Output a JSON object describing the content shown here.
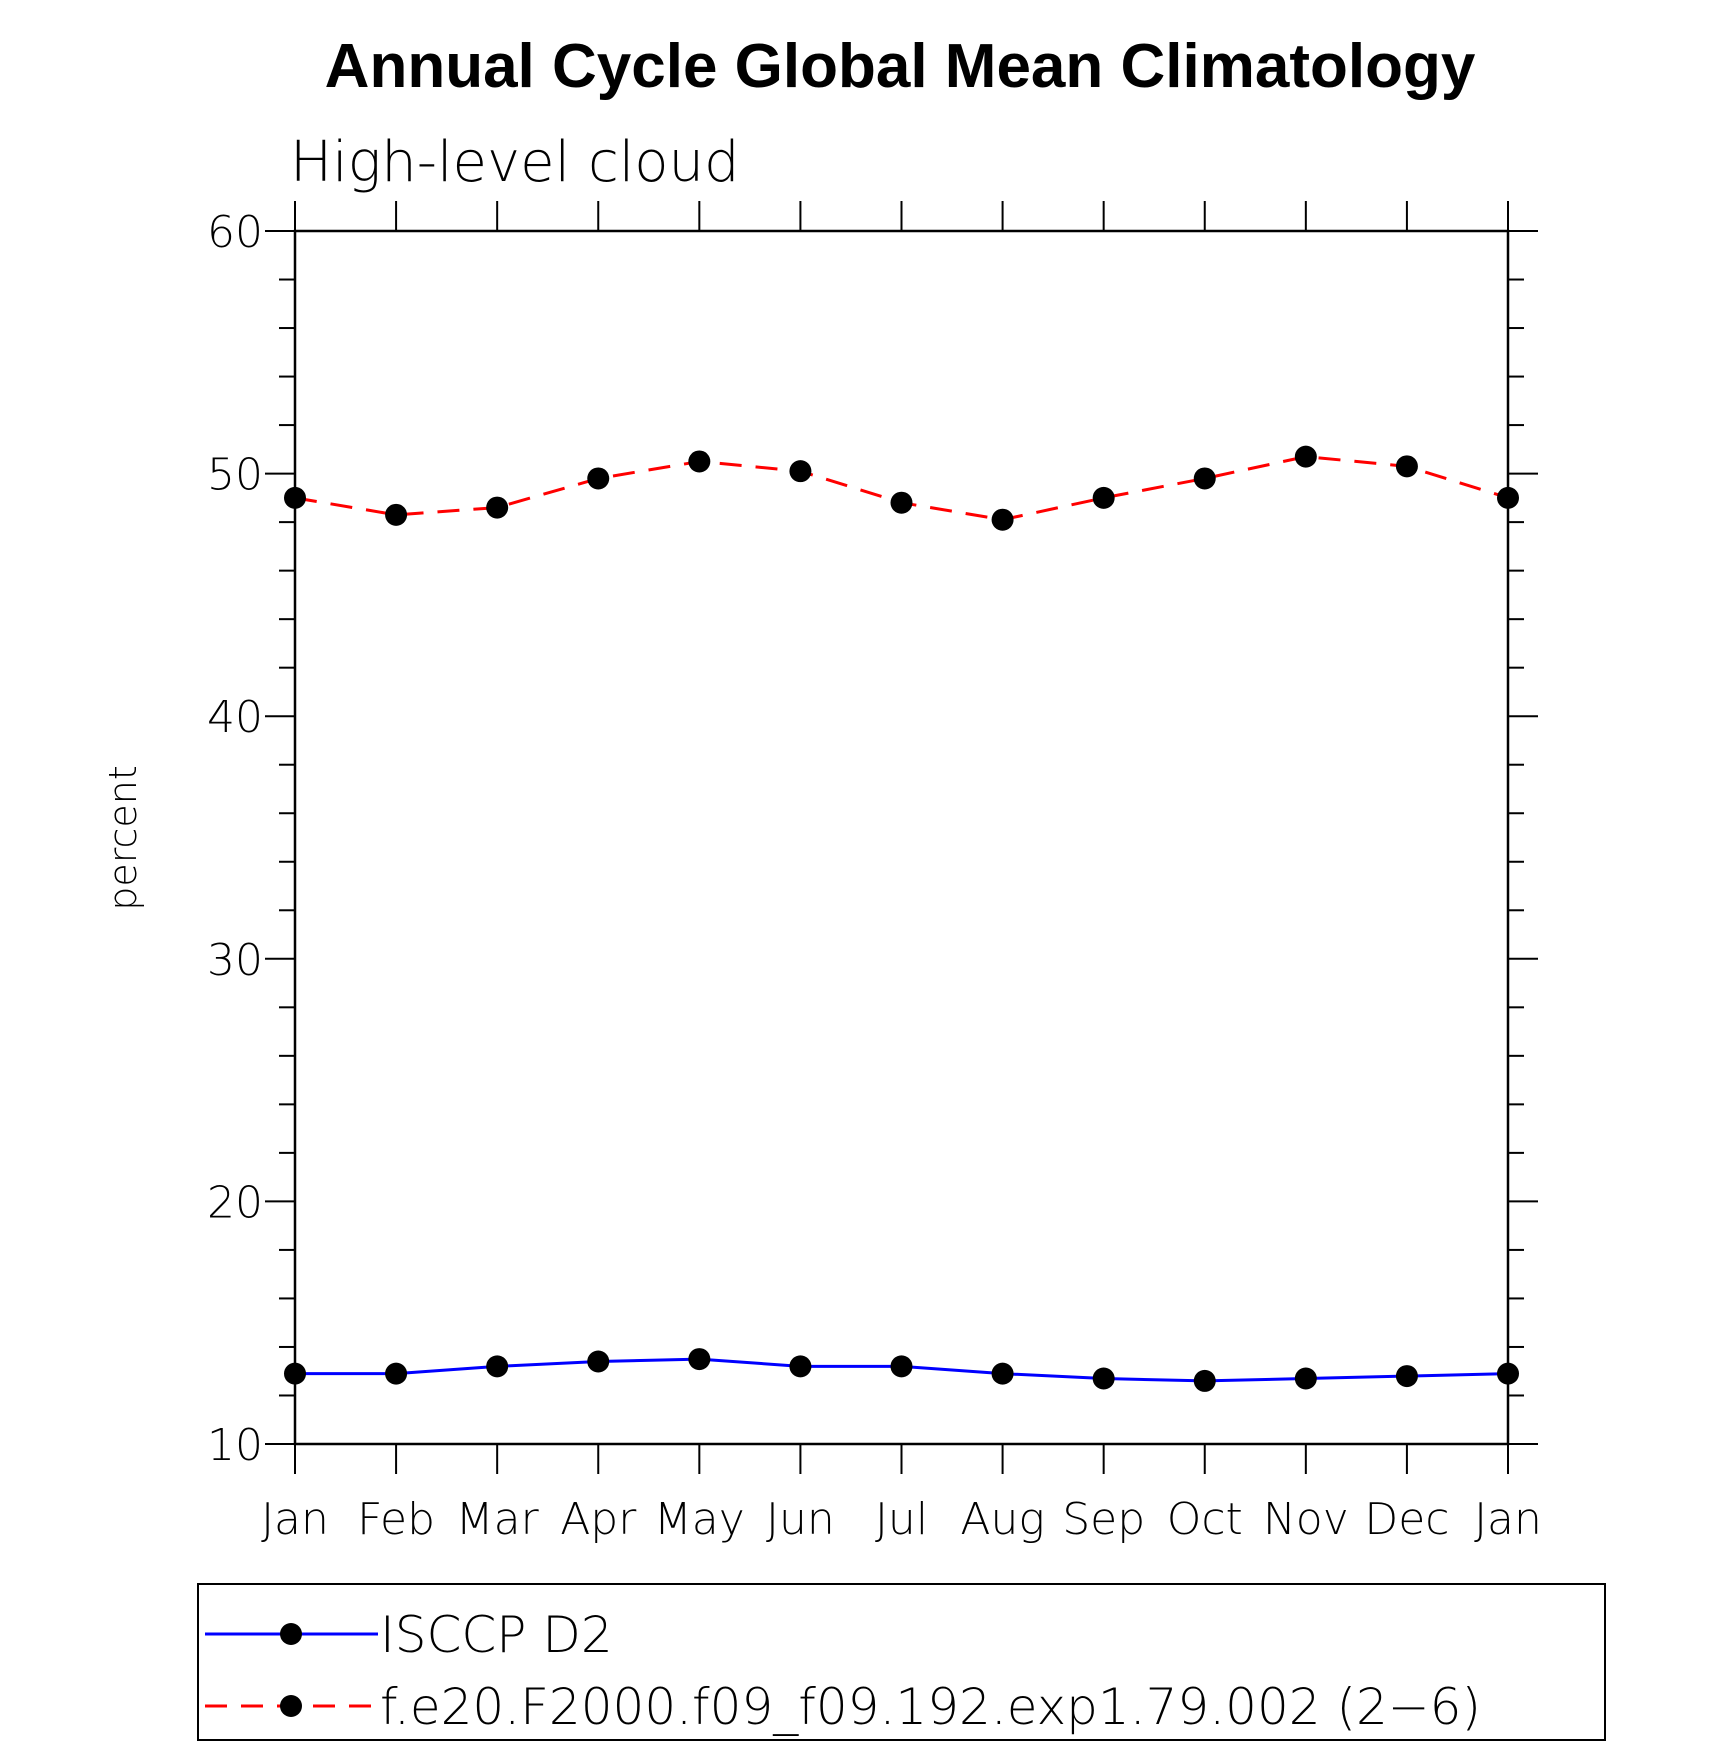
{
  "chart_data": {
    "type": "line",
    "title": "Annual Cycle Global Mean Climatology",
    "subtitle": "High-level cloud",
    "ylabel": "percent",
    "xlabel": "",
    "ylim": [
      10,
      60
    ],
    "yticks": [
      10,
      20,
      30,
      40,
      50,
      60
    ],
    "categories": [
      "Jan",
      "Feb",
      "Mar",
      "Apr",
      "May",
      "Jun",
      "Jul",
      "Aug",
      "Sep",
      "Oct",
      "Nov",
      "Dec",
      "Jan"
    ],
    "grid": false,
    "legend_position": "bottom",
    "series": [
      {
        "name": "ISCCP D2",
        "color": "#0000ff",
        "dash": "solid",
        "marker": "filled-circle",
        "values": [
          12.9,
          12.9,
          13.2,
          13.4,
          13.5,
          13.2,
          13.2,
          12.9,
          12.7,
          12.6,
          12.7,
          12.8,
          12.9
        ]
      },
      {
        "name": "f.e20.F2000.f09_f09.192.exp1.79.002 (2−6)",
        "color": "#ff0000",
        "dash": "dashed",
        "marker": "filled-circle",
        "values": [
          49.0,
          48.3,
          48.6,
          49.8,
          50.5,
          50.1,
          48.8,
          48.1,
          49.0,
          49.8,
          50.7,
          50.3,
          49.0
        ]
      }
    ]
  }
}
